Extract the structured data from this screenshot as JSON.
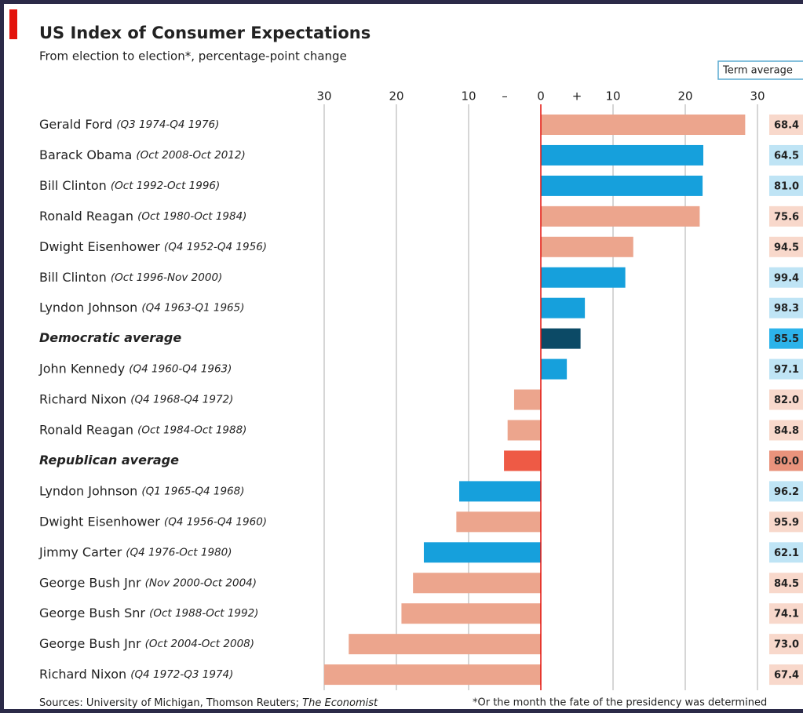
{
  "chart_data": {
    "type": "bar",
    "orientation": "horizontal",
    "title": "US Index of Consumer Expectations",
    "subtitle": "From election to election*, percentage-point change",
    "categories": [
      "Gerald Ford",
      "Barack Obama",
      "Bill Clinton",
      "Ronald Reagan",
      "Dwight Eisenhower",
      "Bill Clinton",
      "Lyndon Johnson",
      "Democratic average",
      "John Kennedy",
      "Richard Nixon",
      "Ronald Reagan",
      "Republican average",
      "Lyndon Johnson",
      "Dwight Eisenhower",
      "Jimmy Carter",
      "George Bush Jnr",
      "George Bush Snr",
      "George Bush Jnr",
      "Richard Nixon"
    ],
    "periods": [
      "(Q3 1974-Q4 1976)",
      "(Oct 2008-Oct 2012)",
      "(Oct 1992-Oct 1996)",
      "(Oct 1980-Oct 1984)",
      "(Q4 1952-Q4 1956)",
      "(Oct 1996-Nov 2000)",
      "(Q4 1963-Q1 1965)",
      null,
      "(Q4 1960-Q4 1963)",
      "(Q4 1968-Q4 1972)",
      "(Oct 1984-Oct 1988)",
      null,
      "(Q1 1965-Q4 1968)",
      "(Q4 1956-Q4 1960)",
      "(Q4 1976-Oct 1980)",
      "(Nov 2000-Oct 2004)",
      "(Oct 1988-Oct 1992)",
      "(Oct 2004-Oct 2008)",
      "(Q4 1972-Q3 1974)"
    ],
    "values": [
      28.3,
      22.5,
      22.4,
      22.0,
      12.8,
      11.7,
      6.1,
      5.5,
      3.6,
      -3.7,
      -4.6,
      -5.1,
      -11.3,
      -11.7,
      -16.2,
      -17.7,
      -19.3,
      -26.6,
      -30.0
    ],
    "colors": [
      "#eca58d",
      "#16a0dc",
      "#16a0dc",
      "#eca58d",
      "#eca58d",
      "#16a0dc",
      "#16a0dc",
      "#0c4a66",
      "#16a0dc",
      "#eca58d",
      "#eca58d",
      "#ee5a45",
      "#16a0dc",
      "#eca58d",
      "#16a0dc",
      "#eca58d",
      "#eca58d",
      "#eca58d",
      "#eca58d"
    ],
    "xlim": [
      -30.5,
      30.5
    ],
    "xticks": [
      {
        "value": -30,
        "label": "30"
      },
      {
        "value": -20,
        "label": "20"
      },
      {
        "value": -10,
        "label": "10"
      },
      0,
      10,
      20,
      30
    ],
    "axis_signs": [
      "–",
      "+"
    ],
    "grid": true,
    "term_average": {
      "label": "Term average",
      "values": [
        68.4,
        64.5,
        81.0,
        75.6,
        94.5,
        99.4,
        98.3,
        85.5,
        97.1,
        82.0,
        84.8,
        80.0,
        96.2,
        95.9,
        62.1,
        84.5,
        74.1,
        73.0,
        67.4
      ],
      "value_labels": [
        "68.4",
        "64.5",
        "81.0",
        "75.6",
        "94.5",
        "99.4",
        "98.3",
        "85.5",
        "97.1",
        "82.0",
        "84.8",
        "80.0",
        "96.2",
        "95.9",
        "62.1",
        "84.5",
        "74.1",
        "73.0",
        "67.4"
      ],
      "colors": [
        "#f8d8cb",
        "#bfe4f5",
        "#bfe4f5",
        "#f8d8cb",
        "#f8d8cb",
        "#bfe4f5",
        "#bfe4f5",
        "#2cb3ea",
        "#bfe4f5",
        "#f8d8cb",
        "#f8d8cb",
        "#e9937c",
        "#bfe4f5",
        "#f8d8cb",
        "#bfe4f5",
        "#f8d8cb",
        "#f8d8cb",
        "#f8d8cb",
        "#f8d8cb"
      ]
    },
    "source": "Sources: University of Michigan, Thomson Reuters;",
    "source_publication": "The Economist",
    "footnote": "*Or the month the fate of the presidency was determined"
  }
}
